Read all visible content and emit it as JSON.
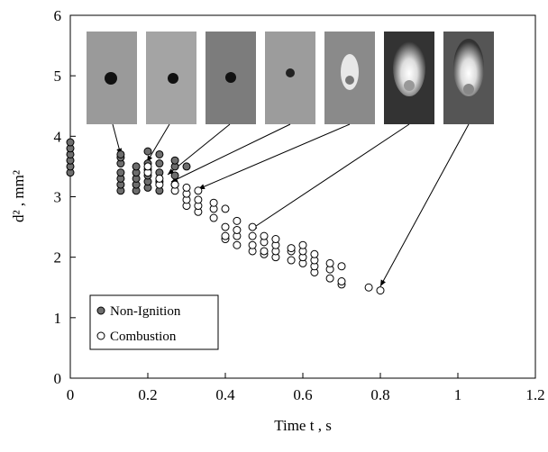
{
  "chart_data": {
    "type": "scatter",
    "x_label": "Time t , s",
    "y_label": "d² , mm²",
    "xlim": [
      0,
      1.2
    ],
    "xticks": [
      0,
      0.2,
      0.4,
      0.6,
      0.8,
      1,
      1.2
    ],
    "ylim": [
      0,
      6
    ],
    "yticks": [
      0,
      1,
      2,
      3,
      4,
      5,
      6
    ],
    "legend": "lower left",
    "series": [
      {
        "name": "Non-Ignition",
        "color": "#6e6e6e",
        "x": [
          0,
          0,
          0,
          0,
          0,
          0,
          0.13,
          0.13,
          0.13,
          0.13,
          0.13,
          0.13,
          0.13,
          0.17,
          0.17,
          0.17,
          0.17,
          0.17,
          0.2,
          0.2,
          0.2,
          0.2,
          0.2,
          0.2,
          0.23,
          0.23,
          0.23,
          0.23,
          0.23,
          0.27,
          0.27,
          0.27,
          0.27,
          0.3
        ],
        "values": [
          3.4,
          3.5,
          3.6,
          3.7,
          3.8,
          3.9,
          3.1,
          3.2,
          3.3,
          3.4,
          3.55,
          3.65,
          3.7,
          3.1,
          3.2,
          3.3,
          3.4,
          3.5,
          3.15,
          3.25,
          3.35,
          3.45,
          3.55,
          3.75,
          3.1,
          3.25,
          3.4,
          3.55,
          3.7,
          3.2,
          3.35,
          3.5,
          3.6,
          3.5
        ]
      },
      {
        "name": "Combustion",
        "color": "#ffffff",
        "x": [
          0.2,
          0.2,
          0.23,
          0.23,
          0.27,
          0.27,
          0.3,
          0.3,
          0.3,
          0.3,
          0.33,
          0.33,
          0.33,
          0.33,
          0.37,
          0.37,
          0.37,
          0.4,
          0.4,
          0.4,
          0.4,
          0.43,
          0.43,
          0.43,
          0.43,
          0.47,
          0.47,
          0.47,
          0.47,
          0.5,
          0.5,
          0.5,
          0.5,
          0.53,
          0.53,
          0.53,
          0.53,
          0.57,
          0.57,
          0.57,
          0.6,
          0.6,
          0.6,
          0.6,
          0.63,
          0.63,
          0.63,
          0.63,
          0.67,
          0.67,
          0.67,
          0.7,
          0.7,
          0.7,
          0.77,
          0.8
        ],
        "values": [
          3.4,
          3.5,
          3.2,
          3.3,
          3.1,
          3.2,
          2.85,
          2.95,
          3.05,
          3.15,
          2.75,
          2.85,
          2.95,
          3.1,
          2.65,
          2.8,
          2.9,
          2.3,
          2.35,
          2.5,
          2.8,
          2.2,
          2.35,
          2.45,
          2.6,
          2.1,
          2.2,
          2.35,
          2.5,
          2.05,
          2.1,
          2.25,
          2.35,
          2.0,
          2.1,
          2.2,
          2.3,
          1.95,
          2.1,
          2.15,
          1.9,
          2.0,
          2.1,
          2.2,
          1.75,
          1.85,
          1.95,
          2.05,
          1.65,
          1.8,
          1.9,
          1.55,
          1.6,
          1.85,
          1.5,
          1.45
        ]
      }
    ]
  }
}
